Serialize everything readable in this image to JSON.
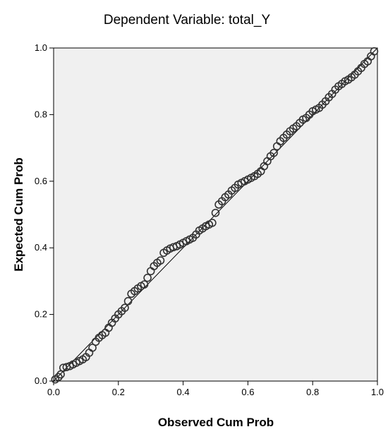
{
  "chart_data": {
    "type": "scatter",
    "title": "Dependent Variable: total_Y",
    "xlabel": "Observed Cum Prob",
    "ylabel": "Expected Cum Prob",
    "xlim": [
      0.0,
      1.0
    ],
    "ylim": [
      0.0,
      1.0
    ],
    "x_ticks": [
      "0.0",
      "0.2",
      "0.4",
      "0.6",
      "0.8",
      "1.0"
    ],
    "y_ticks": [
      "0.0",
      "0.2",
      "0.4",
      "0.6",
      "0.8",
      "1.0"
    ],
    "grid": false,
    "reference_line": [
      [
        0.0,
        0.0
      ],
      [
        1.0,
        1.0
      ]
    ],
    "points": [
      [
        0.005,
        0.005
      ],
      [
        0.015,
        0.012
      ],
      [
        0.022,
        0.02
      ],
      [
        0.03,
        0.04
      ],
      [
        0.04,
        0.042
      ],
      [
        0.05,
        0.045
      ],
      [
        0.06,
        0.05
      ],
      [
        0.07,
        0.055
      ],
      [
        0.08,
        0.06
      ],
      [
        0.09,
        0.065
      ],
      [
        0.1,
        0.072
      ],
      [
        0.11,
        0.085
      ],
      [
        0.12,
        0.1
      ],
      [
        0.13,
        0.118
      ],
      [
        0.14,
        0.13
      ],
      [
        0.15,
        0.138
      ],
      [
        0.16,
        0.145
      ],
      [
        0.17,
        0.16
      ],
      [
        0.18,
        0.175
      ],
      [
        0.19,
        0.188
      ],
      [
        0.2,
        0.2
      ],
      [
        0.21,
        0.21
      ],
      [
        0.22,
        0.22
      ],
      [
        0.23,
        0.24
      ],
      [
        0.24,
        0.262
      ],
      [
        0.25,
        0.27
      ],
      [
        0.26,
        0.278
      ],
      [
        0.27,
        0.285
      ],
      [
        0.28,
        0.29
      ],
      [
        0.29,
        0.31
      ],
      [
        0.3,
        0.33
      ],
      [
        0.31,
        0.345
      ],
      [
        0.32,
        0.355
      ],
      [
        0.33,
        0.362
      ],
      [
        0.34,
        0.385
      ],
      [
        0.35,
        0.392
      ],
      [
        0.36,
        0.398
      ],
      [
        0.37,
        0.402
      ],
      [
        0.38,
        0.405
      ],
      [
        0.39,
        0.41
      ],
      [
        0.4,
        0.415
      ],
      [
        0.41,
        0.42
      ],
      [
        0.42,
        0.425
      ],
      [
        0.43,
        0.43
      ],
      [
        0.44,
        0.44
      ],
      [
        0.45,
        0.452
      ],
      [
        0.46,
        0.458
      ],
      [
        0.47,
        0.465
      ],
      [
        0.48,
        0.47
      ],
      [
        0.49,
        0.475
      ],
      [
        0.5,
        0.505
      ],
      [
        0.51,
        0.53
      ],
      [
        0.52,
        0.54
      ],
      [
        0.53,
        0.552
      ],
      [
        0.54,
        0.56
      ],
      [
        0.55,
        0.572
      ],
      [
        0.56,
        0.58
      ],
      [
        0.57,
        0.59
      ],
      [
        0.58,
        0.595
      ],
      [
        0.59,
        0.6
      ],
      [
        0.6,
        0.605
      ],
      [
        0.61,
        0.61
      ],
      [
        0.62,
        0.615
      ],
      [
        0.63,
        0.622
      ],
      [
        0.64,
        0.63
      ],
      [
        0.65,
        0.645
      ],
      [
        0.66,
        0.66
      ],
      [
        0.67,
        0.675
      ],
      [
        0.68,
        0.685
      ],
      [
        0.69,
        0.705
      ],
      [
        0.7,
        0.72
      ],
      [
        0.71,
        0.73
      ],
      [
        0.72,
        0.74
      ],
      [
        0.73,
        0.75
      ],
      [
        0.74,
        0.758
      ],
      [
        0.75,
        0.765
      ],
      [
        0.76,
        0.775
      ],
      [
        0.77,
        0.785
      ],
      [
        0.78,
        0.79
      ],
      [
        0.79,
        0.8
      ],
      [
        0.8,
        0.81
      ],
      [
        0.81,
        0.815
      ],
      [
        0.82,
        0.82
      ],
      [
        0.83,
        0.83
      ],
      [
        0.84,
        0.84
      ],
      [
        0.85,
        0.852
      ],
      [
        0.86,
        0.862
      ],
      [
        0.87,
        0.875
      ],
      [
        0.88,
        0.885
      ],
      [
        0.89,
        0.892
      ],
      [
        0.9,
        0.9
      ],
      [
        0.91,
        0.905
      ],
      [
        0.92,
        0.912
      ],
      [
        0.93,
        0.92
      ],
      [
        0.94,
        0.93
      ],
      [
        0.95,
        0.94
      ],
      [
        0.96,
        0.952
      ],
      [
        0.97,
        0.96
      ],
      [
        0.98,
        0.975
      ],
      [
        0.99,
        0.99
      ]
    ]
  }
}
